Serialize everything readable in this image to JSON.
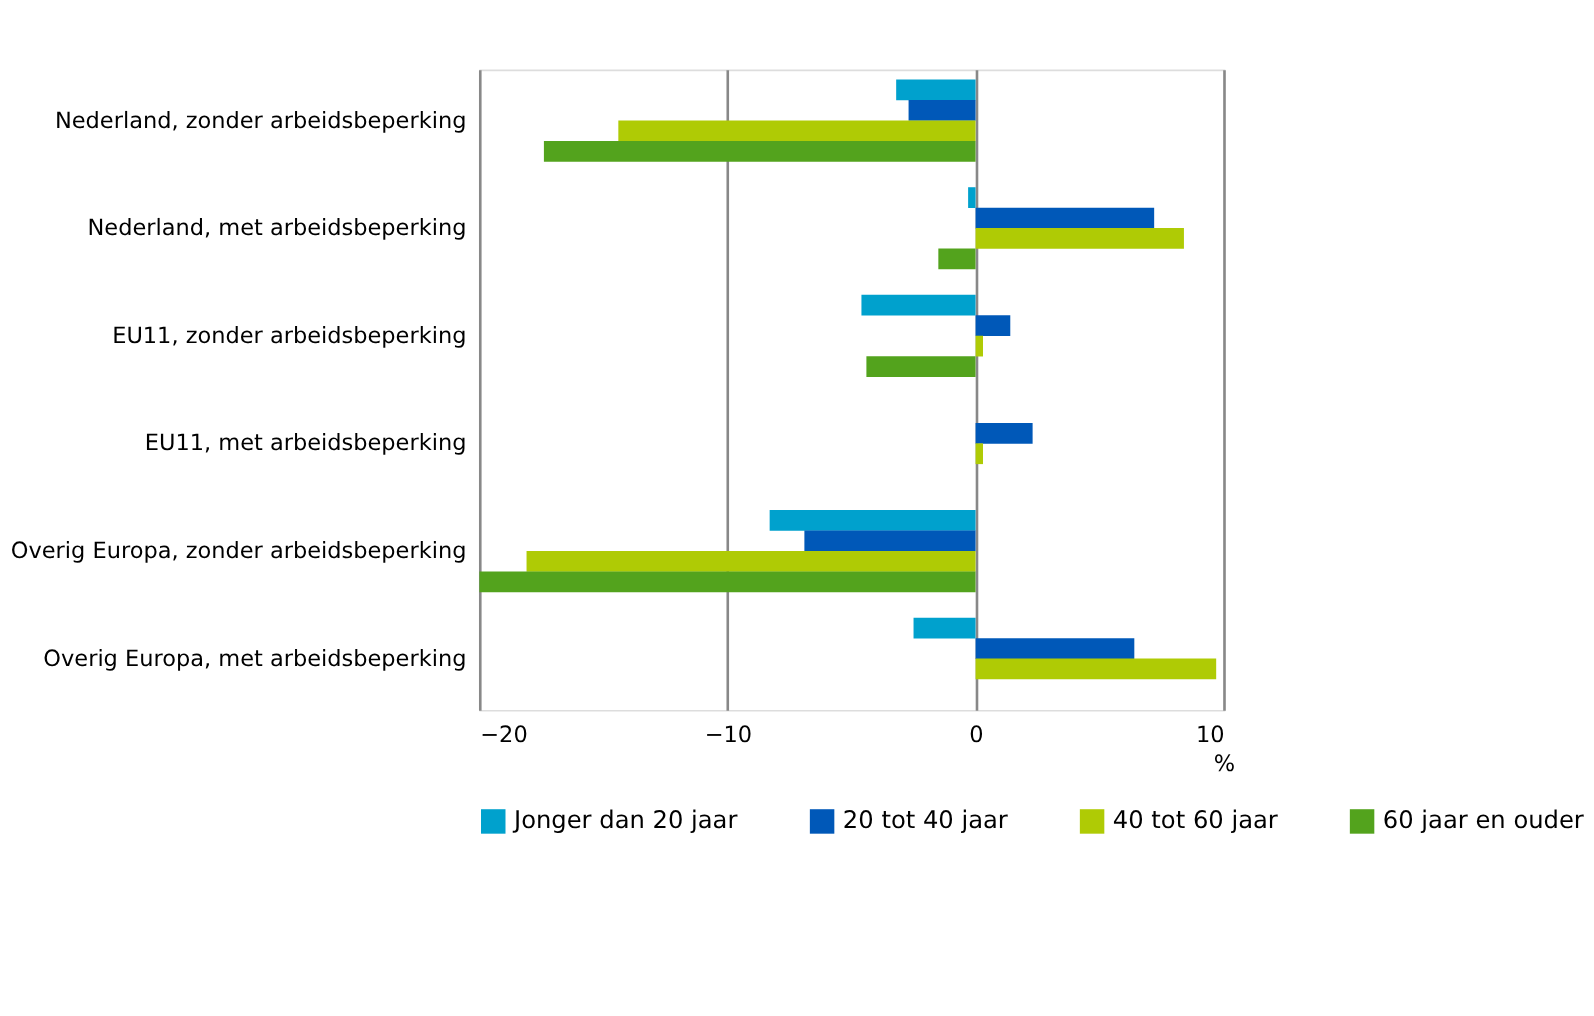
{
  "chart_data": {
    "type": "bar",
    "orientation": "horizontal",
    "xlabel": "%",
    "categories": [
      "Nederland, zonder arbeidsbeperking",
      "Nederland, met arbeidsbeperking",
      "EU11, zonder arbeidsbeperking",
      "EU11, met arbeidsbeperking",
      "Overig Europa, zonder arbeidsbeperking",
      "Overig Europa, met arbeidsbeperking"
    ],
    "series": [
      {
        "name": "Jonger dan 20 jaar",
        "color": "#00a1cd",
        "values": [
          -3.2,
          -0.3,
          -4.6,
          null,
          -8.3,
          -2.5
        ]
      },
      {
        "name": "20 tot 40 jaar",
        "color": "#0058b8",
        "values": [
          -2.7,
          7.2,
          1.4,
          2.3,
          -6.9,
          6.4
        ]
      },
      {
        "name": "40 tot 60 jaar",
        "color": "#afcb05",
        "values": [
          -14.4,
          8.4,
          0.3,
          0.3,
          -18.1,
          9.7
        ]
      },
      {
        "name": "60 jaar en ouder",
        "color": "#53a31d",
        "values": [
          -17.4,
          -1.5,
          -4.4,
          null,
          -20.0,
          null
        ]
      }
    ],
    "xlim": [
      -20,
      10
    ],
    "xticks": [
      -20,
      -10,
      0,
      10
    ],
    "grid": "x",
    "legend": "bottom"
  }
}
